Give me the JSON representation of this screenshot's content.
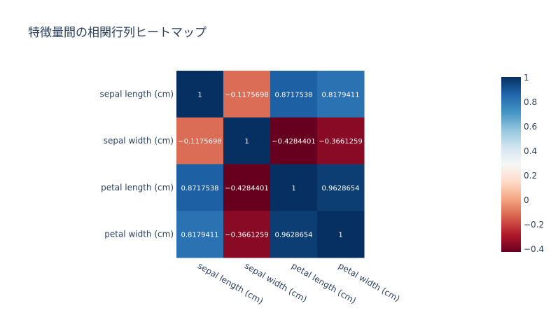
{
  "chart_data": {
    "type": "heatmap",
    "title": "特徴量間の相関行列ヒートマップ",
    "x": [
      "sepal length (cm)",
      "sepal width (cm)",
      "petal length (cm)",
      "petal width (cm)"
    ],
    "y": [
      "sepal length (cm)",
      "sepal width (cm)",
      "petal length (cm)",
      "petal width (cm)"
    ],
    "z": [
      [
        1,
        -0.1175698,
        0.8717538,
        0.8179411
      ],
      [
        -0.1175698,
        1,
        -0.4284401,
        -0.3661259
      ],
      [
        0.8717538,
        -0.4284401,
        1,
        0.9628654
      ],
      [
        0.8179411,
        -0.3661259,
        0.9628654,
        1
      ]
    ],
    "text": [
      [
        "1",
        "−0.1175698",
        "0.8717538",
        "0.8179411"
      ],
      [
        "−0.1175698",
        "1",
        "−0.4284401",
        "−0.3661259"
      ],
      [
        "0.8717538",
        "−0.4284401",
        "1",
        "0.9628654"
      ],
      [
        "0.8179411",
        "−0.3661259",
        "0.9628654",
        "1"
      ]
    ],
    "colorscale": "RdBu",
    "zrange": [
      -0.4284401,
      1
    ],
    "colorbar_ticks": [
      "1",
      "0.8",
      "0.6",
      "0.4",
      "0.2",
      "0",
      "−0.2",
      "−0.4"
    ],
    "colorbar_tick_values": [
      1,
      0.8,
      0.6,
      0.4,
      0.2,
      0,
      -0.2,
      -0.4
    ]
  }
}
